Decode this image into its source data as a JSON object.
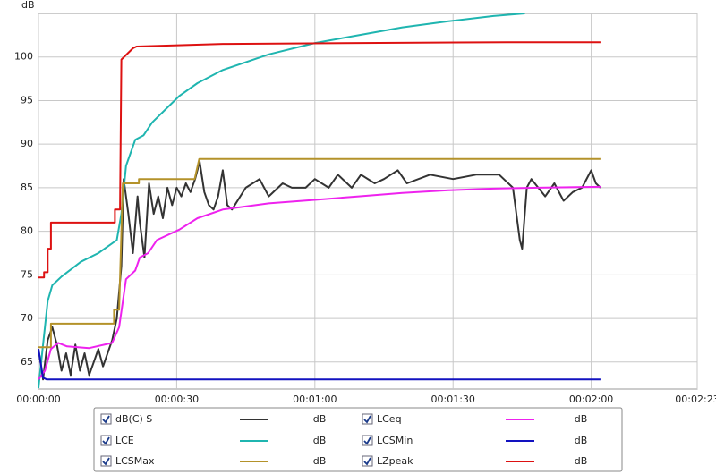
{
  "chart_data": {
    "type": "line",
    "y_label": "dB",
    "xlim": [
      0,
      143
    ],
    "ylim": [
      61.9,
      105
    ],
    "xticks": [
      {
        "value": 0,
        "label": "00:00:00"
      },
      {
        "value": 30,
        "label": "00:00:30"
      },
      {
        "value": 60,
        "label": "00:01:00"
      },
      {
        "value": 90,
        "label": "00:01:30"
      },
      {
        "value": 120,
        "label": "00:02:00"
      },
      {
        "value": 143,
        "label": "00:02:23"
      }
    ],
    "yticks": [
      65,
      70,
      75,
      80,
      85,
      90,
      95,
      100
    ],
    "grid": true,
    "series": [
      {
        "name": "dB(C) S",
        "unit": "dB",
        "color": "#333333",
        "x": [
          0,
          1,
          2,
          3,
          4,
          5,
          6,
          7,
          8,
          9,
          10,
          11,
          12,
          13,
          14,
          15,
          16,
          17,
          18,
          18.5,
          19.5,
          20.5,
          21.5,
          22,
          23,
          24,
          25,
          26,
          27,
          28,
          29,
          30,
          31,
          32,
          33,
          34,
          35,
          36,
          37,
          38,
          39,
          40,
          41,
          42,
          45,
          48,
          50,
          53,
          55,
          58,
          60,
          63,
          65,
          68,
          70,
          73,
          75,
          78,
          80,
          85,
          90,
          95,
          100,
          103,
          104.5,
          105,
          106,
          107,
          110,
          112,
          114,
          116,
          118,
          120,
          121,
          122
        ],
        "values": [
          66.5,
          63,
          67.5,
          69,
          67,
          64,
          66,
          63.5,
          67,
          64,
          66,
          63.5,
          65,
          66.5,
          64.5,
          66,
          67.5,
          70,
          76,
          86,
          82,
          77.5,
          84,
          81,
          77,
          85.5,
          82,
          84,
          81.5,
          85,
          83,
          85,
          84,
          85.5,
          84.5,
          86,
          88,
          84.5,
          83,
          82.5,
          84,
          87,
          83,
          82.5,
          85,
          86,
          84,
          85.5,
          85,
          85,
          86,
          85,
          86.5,
          85,
          86.5,
          85.5,
          86,
          87,
          85.5,
          86.5,
          86,
          86.5,
          86.5,
          85,
          79,
          78,
          85,
          86,
          84,
          85.5,
          83.5,
          84.5,
          85,
          87,
          85.5,
          85
        ]
      },
      {
        "name": "LCE",
        "unit": "dB",
        "color": "#1fb5b0",
        "x": [
          0,
          1,
          2,
          3,
          5,
          9.2,
          13,
          17,
          18,
          19,
          21,
          22.8,
          24.7,
          30.5,
          34.5,
          40,
          50,
          60,
          69.5,
          79,
          89,
          98.8,
          105.6
        ],
        "values": [
          62,
          67,
          72,
          73.8,
          74.8,
          76.5,
          77.5,
          79,
          82,
          87.5,
          90.5,
          91,
          92.5,
          95.5,
          97,
          98.5,
          100.3,
          101.6,
          102.5,
          103.4,
          104.1,
          104.7,
          105
        ]
      },
      {
        "name": "LCSMax",
        "unit": "dB",
        "color": "#b4922a",
        "x": [
          0,
          2.7,
          2.7,
          16.4,
          16.4,
          17.5,
          18.3,
          21.8,
          21.8,
          33.9,
          34.9,
          122
        ],
        "values": [
          66.7,
          66.7,
          69.4,
          69.4,
          71,
          71,
          85.5,
          85.5,
          86,
          86,
          88.3,
          88.3
        ]
      },
      {
        "name": "LCeq",
        "unit": "dB",
        "color": "#ee22ee",
        "x": [
          0,
          1.4,
          2.7,
          4.3,
          6.2,
          11,
          16,
          17.5,
          19,
          21,
          22,
          23.8,
          25.7,
          30.6,
          34.5,
          40,
          50,
          60,
          69.5,
          79,
          89,
          98.8,
          108.5,
          122
        ],
        "values": [
          63,
          64,
          66.5,
          67.2,
          66.8,
          66.6,
          67.2,
          69,
          74.5,
          75.5,
          77,
          77.5,
          79,
          80.2,
          81.5,
          82.5,
          83.2,
          83.6,
          84,
          84.4,
          84.7,
          84.9,
          85,
          85.1
        ]
      },
      {
        "name": "LCSMin",
        "unit": "dB",
        "color": "#1212c0",
        "x": [
          0,
          1,
          1.8,
          122
        ],
        "values": [
          66.5,
          63.2,
          63,
          63
        ]
      },
      {
        "name": "LZpeak",
        "unit": "dB",
        "color": "#dd1111",
        "x": [
          0,
          1.2,
          1.2,
          2,
          2,
          2.7,
          2.7,
          16.6,
          16.6,
          17.7,
          18,
          20.5,
          21.3,
          40,
          101.7,
          122
        ],
        "values": [
          74.7,
          74.7,
          75.3,
          75.3,
          78,
          78,
          81,
          81,
          82.5,
          82.5,
          99.7,
          101,
          101.2,
          101.5,
          101.7,
          101.7
        ]
      }
    ]
  }
}
